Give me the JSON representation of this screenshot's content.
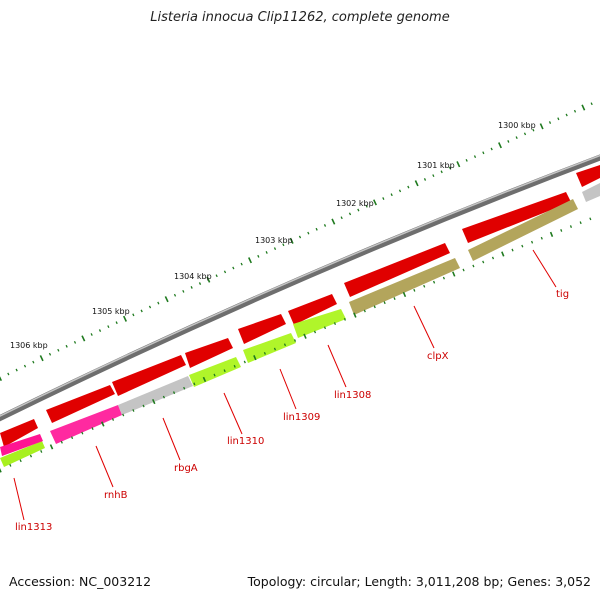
{
  "title": "Listeria innocua Clip11262, complete genome",
  "footer": {
    "accession": "Accession: NC_003212",
    "stats": "Topology: circular; Length: 3,011,208 bp; Genes: 3,052"
  },
  "colors": {
    "backbone": "#8a8a8a",
    "forward_strand": "#ee0000",
    "tick": "#1f7a1f",
    "label": "#d00000"
  },
  "scale_labels": [
    "1300 kbp",
    "1301 kbp",
    "1302 kbp",
    "1303 kbp",
    "1304 kbp",
    "1305 kbp",
    "1306 kbp"
  ],
  "gene_labels": [
    {
      "name": "tig",
      "color": "#b5a862"
    },
    {
      "name": "clpX",
      "color": "#b5a862"
    },
    {
      "name": "lin1308",
      "color": "#b4ff3a"
    },
    {
      "name": "lin1309",
      "color": "#b4ff3a"
    },
    {
      "name": "lin1310",
      "color": "#b4ff3a"
    },
    {
      "name": "rbgA",
      "color": "#c8c8c8"
    },
    {
      "name": "rnhB",
      "color": "#ff1493"
    },
    {
      "name": "lin1313",
      "color": "#b4ff3a"
    }
  ]
}
